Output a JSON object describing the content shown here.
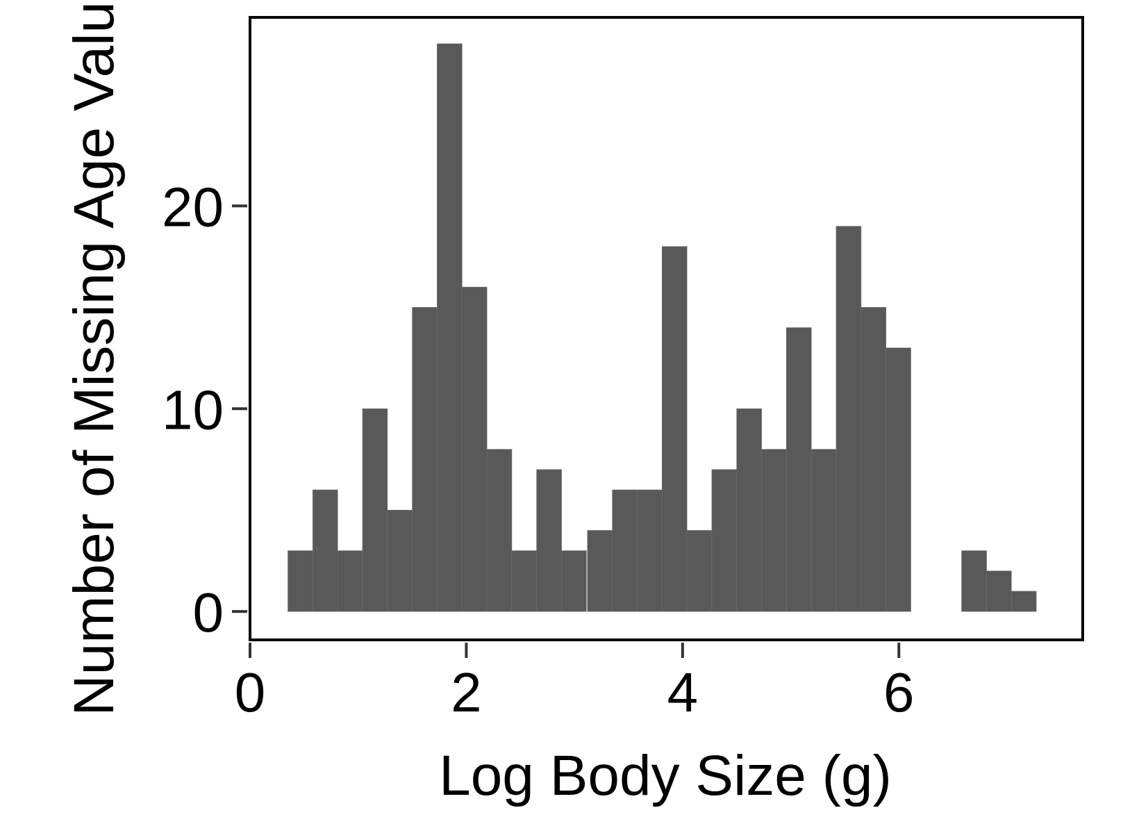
{
  "chart_data": {
    "type": "bar",
    "subtype": "histogram",
    "xlabel": "Log Body Size (g)",
    "ylabel": "Number of Missing Age Values",
    "xlim": [
      0,
      7.7
    ],
    "ylim": [
      -1.4,
      29.3
    ],
    "xticks": [
      0,
      2,
      4,
      6
    ],
    "xtick_labels": [
      "0",
      "2",
      "4",
      "6"
    ],
    "yticks": [
      0,
      10,
      20
    ],
    "ytick_labels": [
      "0",
      "10",
      "20"
    ],
    "grid": false,
    "legend": "none",
    "bar_color": "#595959",
    "bin_width": 0.2308,
    "bins": [
      {
        "x0": 0.35,
        "count": 3
      },
      {
        "x0": 0.58,
        "count": 6
      },
      {
        "x0": 0.81,
        "count": 3
      },
      {
        "x0": 1.04,
        "count": 10
      },
      {
        "x0": 1.27,
        "count": 5
      },
      {
        "x0": 1.5,
        "count": 15
      },
      {
        "x0": 1.73,
        "count": 28
      },
      {
        "x0": 1.96,
        "count": 16
      },
      {
        "x0": 2.19,
        "count": 8
      },
      {
        "x0": 2.42,
        "count": 3
      },
      {
        "x0": 2.65,
        "count": 7
      },
      {
        "x0": 2.88,
        "count": 3
      },
      {
        "x0": 3.12,
        "count": 4
      },
      {
        "x0": 3.35,
        "count": 6
      },
      {
        "x0": 3.58,
        "count": 6
      },
      {
        "x0": 3.81,
        "count": 18
      },
      {
        "x0": 4.04,
        "count": 4
      },
      {
        "x0": 4.27,
        "count": 7
      },
      {
        "x0": 4.5,
        "count": 10
      },
      {
        "x0": 4.73,
        "count": 8
      },
      {
        "x0": 4.96,
        "count": 14
      },
      {
        "x0": 5.19,
        "count": 8
      },
      {
        "x0": 5.42,
        "count": 19
      },
      {
        "x0": 5.65,
        "count": 15
      },
      {
        "x0": 5.88,
        "count": 13
      },
      {
        "x0": 6.11,
        "count": 0
      },
      {
        "x0": 6.34,
        "count": 0
      },
      {
        "x0": 6.58,
        "count": 3
      },
      {
        "x0": 6.81,
        "count": 2
      },
      {
        "x0": 7.04,
        "count": 1
      }
    ]
  }
}
